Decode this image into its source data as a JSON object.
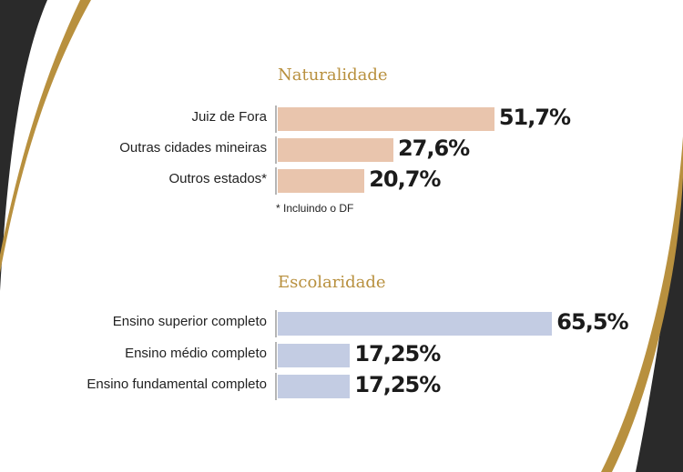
{
  "colors": {
    "gold": "#b8903e",
    "dark": "#2a2a2a",
    "peach": "#e9c5ad",
    "blue": "#c3cce3",
    "axis": "#b5b5b5"
  },
  "chart_data": [
    {
      "type": "bar",
      "orientation": "horizontal",
      "title": "Naturalidade",
      "categories": [
        "Juiz de Fora",
        "Outras cidades mineiras",
        "Outros estados*"
      ],
      "values": [
        51.7,
        27.6,
        20.7
      ],
      "value_labels": [
        "51,7%",
        "27,6%",
        "20,7%"
      ],
      "unit": "%",
      "xlim": [
        0,
        100
      ],
      "color": "#e9c5ad",
      "footnote": "* Incluindo o DF"
    },
    {
      "type": "bar",
      "orientation": "horizontal",
      "title": "Escolaridade",
      "categories": [
        "Ensino superior completo",
        "Ensino médio completo",
        "Ensino fundamental completo"
      ],
      "values": [
        65.5,
        17.25,
        17.25
      ],
      "value_labels": [
        "65,5%",
        "17,25%",
        "17,25%"
      ],
      "unit": "%",
      "xlim": [
        0,
        100
      ],
      "color": "#c3cce3"
    }
  ]
}
